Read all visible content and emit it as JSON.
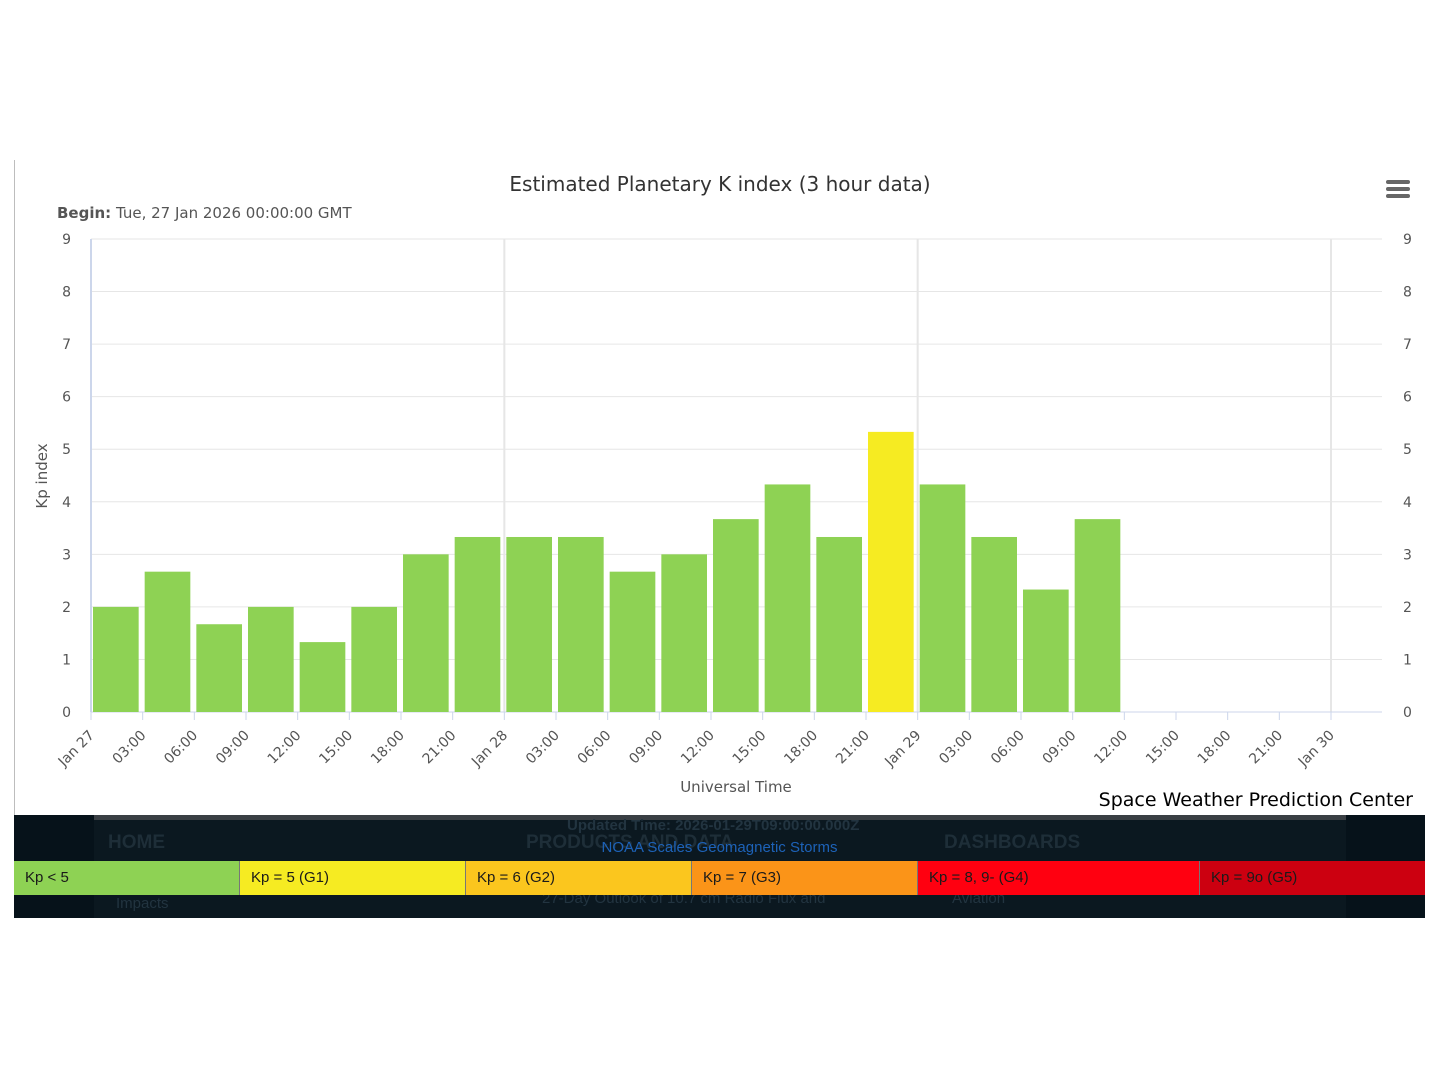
{
  "chart_data": {
    "type": "bar",
    "title": "Estimated Planetary K index (3 hour data)",
    "subtitle_label": "Begin:",
    "subtitle_value": "Tue, 27 Jan 2026 00:00:00 GMT",
    "xlabel": "Universal Time",
    "ylabel": "Kp index",
    "ylim": [
      0,
      9
    ],
    "yticks": [
      0,
      1,
      2,
      3,
      4,
      5,
      6,
      7,
      8,
      9
    ],
    "grid": true,
    "x_ticks": [
      "Jan 27",
      "03:00",
      "06:00",
      "09:00",
      "12:00",
      "15:00",
      "18:00",
      "21:00",
      "Jan 28",
      "03:00",
      "06:00",
      "09:00",
      "12:00",
      "15:00",
      "18:00",
      "21:00",
      "Jan 29",
      "03:00",
      "06:00",
      "09:00",
      "12:00",
      "15:00",
      "18:00",
      "21:00",
      "Jan 30"
    ],
    "bars": [
      {
        "start": "2026-01-27 00:00",
        "kp": 2.0
      },
      {
        "start": "2026-01-27 03:00",
        "kp": 2.67
      },
      {
        "start": "2026-01-27 06:00",
        "kp": 1.67
      },
      {
        "start": "2026-01-27 09:00",
        "kp": 2.0
      },
      {
        "start": "2026-01-27 12:00",
        "kp": 1.33
      },
      {
        "start": "2026-01-27 15:00",
        "kp": 2.0
      },
      {
        "start": "2026-01-27 18:00",
        "kp": 3.0
      },
      {
        "start": "2026-01-27 21:00",
        "kp": 3.33
      },
      {
        "start": "2026-01-28 00:00",
        "kp": 3.33
      },
      {
        "start": "2026-01-28 03:00",
        "kp": 3.33
      },
      {
        "start": "2026-01-28 06:00",
        "kp": 2.67
      },
      {
        "start": "2026-01-28 09:00",
        "kp": 3.0
      },
      {
        "start": "2026-01-28 12:00",
        "kp": 3.67
      },
      {
        "start": "2026-01-28 15:00",
        "kp": 4.33
      },
      {
        "start": "2026-01-28 18:00",
        "kp": 3.33
      },
      {
        "start": "2026-01-28 21:00",
        "kp": 5.33
      },
      {
        "start": "2026-01-29 00:00",
        "kp": 4.33
      },
      {
        "start": "2026-01-29 03:00",
        "kp": 3.33
      },
      {
        "start": "2026-01-29 06:00",
        "kp": 2.33
      },
      {
        "start": "2026-01-29 09:00",
        "kp": 3.67
      }
    ],
    "colors": {
      "below_storm": "#8ed254",
      "g1": "#f6eb22"
    }
  },
  "credit": "Space Weather Prediction Center",
  "scale_link": "NOAA Scales Geomagnetic Storms",
  "scale_legend": [
    {
      "label": "Kp < 5",
      "color": "#8ed254"
    },
    {
      "label": "Kp = 5 (G1)",
      "color": "#f6eb22"
    },
    {
      "label": "Kp = 6 (G2)",
      "color": "#fbc61e"
    },
    {
      "label": "Kp = 7 (G3)",
      "color": "#fb9418"
    },
    {
      "label": "Kp = 8, 9- (G4)",
      "color": "#ff0010"
    },
    {
      "label": "Kp = 9o (G5)",
      "color": "#cc0010"
    }
  ],
  "background_page": {
    "updated": "Updated Time: 2026-01-29T09:00:00.000Z",
    "nav_home": "HOME",
    "nav_products": "PRODUCTS AND DATA",
    "nav_dashboards": "DASHBOARDS",
    "item_impacts": "Impacts",
    "item_outlook": "27-Day Outlook of 10.7 cm Radio Flux and",
    "item_aviation": "Aviation"
  }
}
